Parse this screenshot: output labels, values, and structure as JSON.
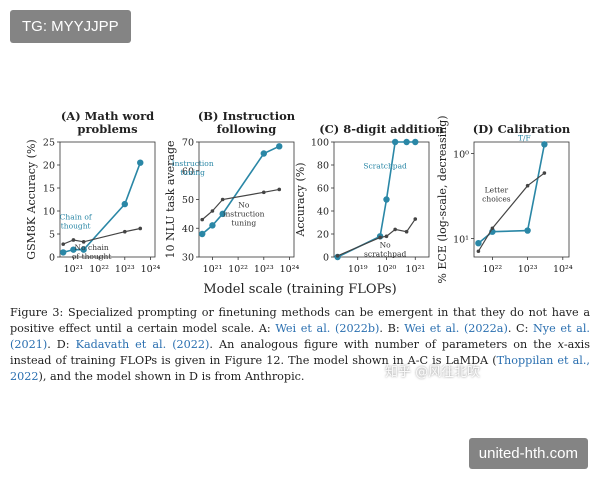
{
  "overlay_top": "TG: MYYJJPP",
  "overlay_bottom": "united-hth.com",
  "watermark": "知乎 @风往北吹",
  "figure": {
    "xlabel": "Model scale (training FLOPs)"
  },
  "chart_data": [
    {
      "type": "line",
      "title_lines": [
        "(A) Math word",
        "problems"
      ],
      "ylabel": "GSM8K Accuracy (%)",
      "x_scale": "log",
      "x_ticks": [
        1e+21,
        1e+22,
        1e+23,
        1e+24
      ],
      "x_tick_labels": [
        "10²¹",
        "10²²",
        "10²³",
        "10²⁴"
      ],
      "xlim": [
        3e+20,
        1.5e+24
      ],
      "ylim": [
        0,
        25
      ],
      "y_ticks": [
        0,
        5,
        10,
        15,
        20,
        25
      ],
      "y_tick_labels": [
        "0",
        "5",
        "10",
        "15",
        "20",
        "25"
      ],
      "series": [
        {
          "name": "Chain of thought",
          "color": "#2a87a6",
          "x": [
            4e+20,
            1e+21,
            2.5e+21,
            1e+23,
            4e+23
          ],
          "y": [
            1,
            1.6,
            1.6,
            11.5,
            20.5
          ]
        },
        {
          "name": "No chain of thought",
          "color": "#444444",
          "x": [
            4e+20,
            1e+21,
            2.5e+21,
            1e+23,
            4e+23
          ],
          "y": [
            2.8,
            3.7,
            3.3,
            5.5,
            6.2
          ]
        }
      ],
      "annotations": [
        {
          "series": 0,
          "lines": [
            "Chain of",
            "thought"
          ]
        },
        {
          "series": 1,
          "lines": [
            "No chain",
            "of thought"
          ]
        }
      ]
    },
    {
      "type": "line",
      "title_lines": [
        "(B) Instruction",
        "following"
      ],
      "ylabel": "10 NLU task average",
      "x_scale": "log",
      "x_ticks": [
        1e+21,
        1e+22,
        1e+23,
        1e+24
      ],
      "x_tick_labels": [
        "10²¹",
        "10²²",
        "10²³",
        "10²⁴"
      ],
      "xlim": [
        3e+20,
        1.5e+24
      ],
      "ylim": [
        30,
        70
      ],
      "y_ticks": [
        30,
        40,
        50,
        60,
        70
      ],
      "y_tick_labels": [
        "30",
        "40",
        "50",
        "60",
        "70"
      ],
      "series": [
        {
          "name": "Instruction tuning",
          "color": "#2a87a6",
          "x": [
            4e+20,
            1e+21,
            2.5e+21,
            1e+23,
            4e+23
          ],
          "y": [
            38,
            41,
            45,
            66,
            68.5
          ]
        },
        {
          "name": "No instruction tuning",
          "color": "#444444",
          "x": [
            4e+20,
            1e+21,
            2.5e+21,
            1e+23,
            4e+23
          ],
          "y": [
            43,
            46,
            50,
            52.5,
            53.5
          ]
        }
      ],
      "annotations": [
        {
          "series": 0,
          "lines": [
            "Instruction",
            "tuning"
          ]
        },
        {
          "series": 1,
          "lines": [
            "No",
            "instruction",
            "tuning"
          ]
        }
      ]
    },
    {
      "type": "line",
      "title_lines": [
        "(C) 8-digit addition"
      ],
      "ylabel": "Accuracy (%)",
      "x_scale": "log",
      "x_ticks": [
        1e+19,
        1e+20,
        1e+21
      ],
      "x_tick_labels": [
        "10¹⁹",
        "10²⁰",
        "10²¹"
      ],
      "xlim": [
        1.5e+18,
        3e+21
      ],
      "ylim": [
        0,
        100
      ],
      "y_ticks": [
        0,
        20,
        40,
        60,
        80,
        100
      ],
      "y_tick_labels": [
        "0",
        "20",
        "40",
        "60",
        "80",
        "100"
      ],
      "series": [
        {
          "name": "Scratchpad",
          "color": "#2a87a6",
          "x": [
            2e+18,
            6e+19,
            1e+20,
            2e+20,
            5e+20,
            1e+21
          ],
          "y": [
            0,
            18,
            50,
            100,
            100,
            100
          ]
        },
        {
          "name": "No scratchpad",
          "color": "#444444",
          "x": [
            2e+18,
            6e+19,
            1e+20,
            2e+20,
            5e+20,
            1e+21
          ],
          "y": [
            1,
            17,
            18,
            24,
            22,
            33
          ]
        }
      ],
      "annotations": [
        {
          "series": 0,
          "lines": [
            "Scratchpad"
          ]
        },
        {
          "series": 1,
          "lines": [
            "No",
            "scratchpad"
          ]
        }
      ]
    },
    {
      "type": "line",
      "title_lines": [
        "(D) Calibration"
      ],
      "ylabel": "% ECE (log-scale, decreasing)",
      "x_scale": "log",
      "y_scale": "log",
      "y_decreasing": true,
      "x_ticks": [
        1e+22,
        1e+23,
        1e+24
      ],
      "x_tick_labels": [
        "10²²",
        "10²³",
        "10²⁴"
      ],
      "xlim": [
        3e+21,
        1.5e+24
      ],
      "y_tick_labels": [
        "10⁰",
        "10¹"
      ],
      "series": [
        {
          "name": "T/F",
          "color": "#2a87a6",
          "x": [
            4e+21,
            1e+22,
            1e+23,
            3e+23
          ],
          "y_rel": [
            0.12,
            0.22,
            0.23,
            0.98
          ]
        },
        {
          "name": "Letter choices",
          "color": "#444444",
          "x": [
            4e+21,
            1e+22,
            1e+23,
            3e+23
          ],
          "y_rel": [
            0.05,
            0.25,
            0.62,
            0.73
          ]
        }
      ],
      "annotations": [
        {
          "series": 0,
          "lines": [
            "T/F"
          ]
        },
        {
          "series": 1,
          "lines": [
            "Letter",
            "choices"
          ]
        }
      ]
    }
  ],
  "caption": {
    "parts": [
      {
        "t": "Figure 3: Specialized prompting or finetuning methods can be emergent in that they do not have a positive effect until a certain model scale. A: ",
        "c": false
      },
      {
        "t": "Wei et al. (2022b)",
        "c": true
      },
      {
        "t": ". B: ",
        "c": false
      },
      {
        "t": "Wei et al. (2022a)",
        "c": true
      },
      {
        "t": ". C: ",
        "c": false
      },
      {
        "t": "Nye et al. (2021)",
        "c": true
      },
      {
        "t": ". D: ",
        "c": false
      },
      {
        "t": "Kadavath et al. (2022)",
        "c": true
      },
      {
        "t": ". An analogous figure with number of parameters on the ",
        "c": false
      },
      {
        "t": "x",
        "c": false,
        "i": true
      },
      {
        "t": "-axis instead of training FLOPs is given in Figure 12. The model shown in A-C is LaMDA (",
        "c": false
      },
      {
        "t": "Thoppilan et al., 2022",
        "c": true
      },
      {
        "t": "), and the model shown in D is from Anthropic.",
        "c": false
      }
    ]
  }
}
